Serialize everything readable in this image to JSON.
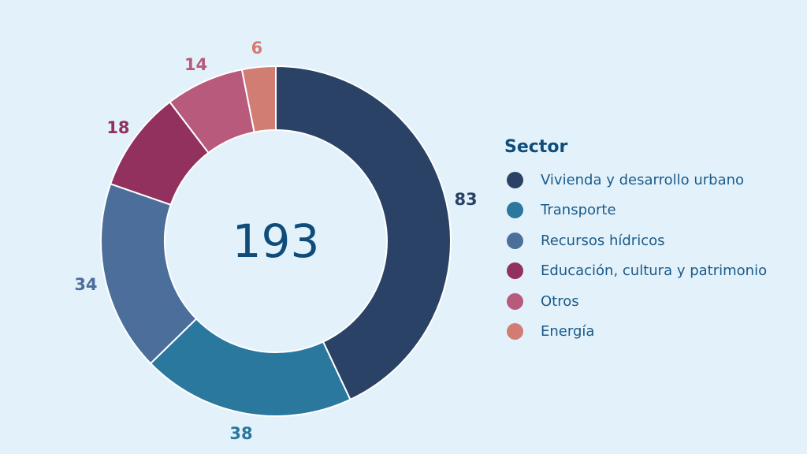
{
  "chart_data": {
    "type": "pie",
    "variant": "donut",
    "total_label": "193",
    "legend_title": "Sector",
    "legend_position": "right",
    "slices": [
      {
        "label": "Vivienda y desarrollo urbano",
        "value": 83,
        "color": "#2a4265"
      },
      {
        "label": "Transporte",
        "value": 38,
        "color": "#2a789e"
      },
      {
        "label": "Recursos hídricos",
        "value": 34,
        "color": "#4b6f9a"
      },
      {
        "label": "Educación, cultura y patrimonio",
        "value": 18,
        "color": "#92305e"
      },
      {
        "label": "Otros",
        "value": 14,
        "color": "#b75a7b"
      },
      {
        "label": "Energía",
        "value": 6,
        "color": "#d27d74"
      }
    ]
  }
}
